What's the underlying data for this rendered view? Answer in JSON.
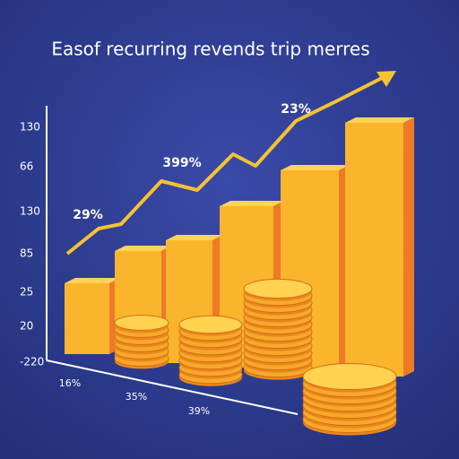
{
  "title": "Easof recurring revends trip merres",
  "y_labels": [
    "130",
    "66",
    "130",
    "85",
    "25",
    "20",
    "-220"
  ],
  "annotations": [
    "29%",
    "399%",
    "23%"
  ],
  "x_labels": [
    "16%",
    "35%",
    "39%"
  ]
}
